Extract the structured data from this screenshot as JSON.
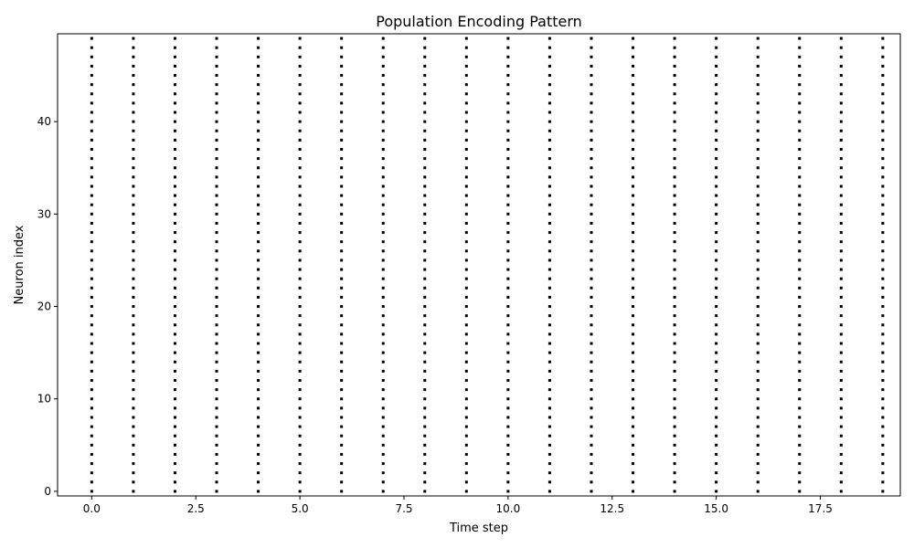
{
  "chart_data": {
    "type": "scatter",
    "title": "Population Encoding Pattern",
    "xlabel": "Time step",
    "ylabel": "Neuron index",
    "xlim": [
      -0.82,
      19.42
    ],
    "ylim": [
      -0.5,
      49.5
    ],
    "xticks": [
      0.0,
      2.5,
      5.0,
      7.5,
      10.0,
      12.5,
      15.0,
      17.5
    ],
    "xtick_labels": [
      "0.0",
      "2.5",
      "5.0",
      "7.5",
      "10.0",
      "12.5",
      "15.0",
      "17.5"
    ],
    "yticks": [
      0,
      10,
      20,
      30,
      40
    ],
    "ytick_labels": [
      "0",
      "10",
      "20",
      "30",
      "40"
    ],
    "grid": false,
    "marker_color": "#000000",
    "spike_times": [
      0,
      1,
      2,
      3,
      4,
      5,
      6,
      7,
      8,
      9,
      10,
      11,
      12,
      13,
      14,
      15,
      16,
      17,
      18,
      19
    ],
    "neurons_per_time_step": [
      0,
      49
    ]
  }
}
